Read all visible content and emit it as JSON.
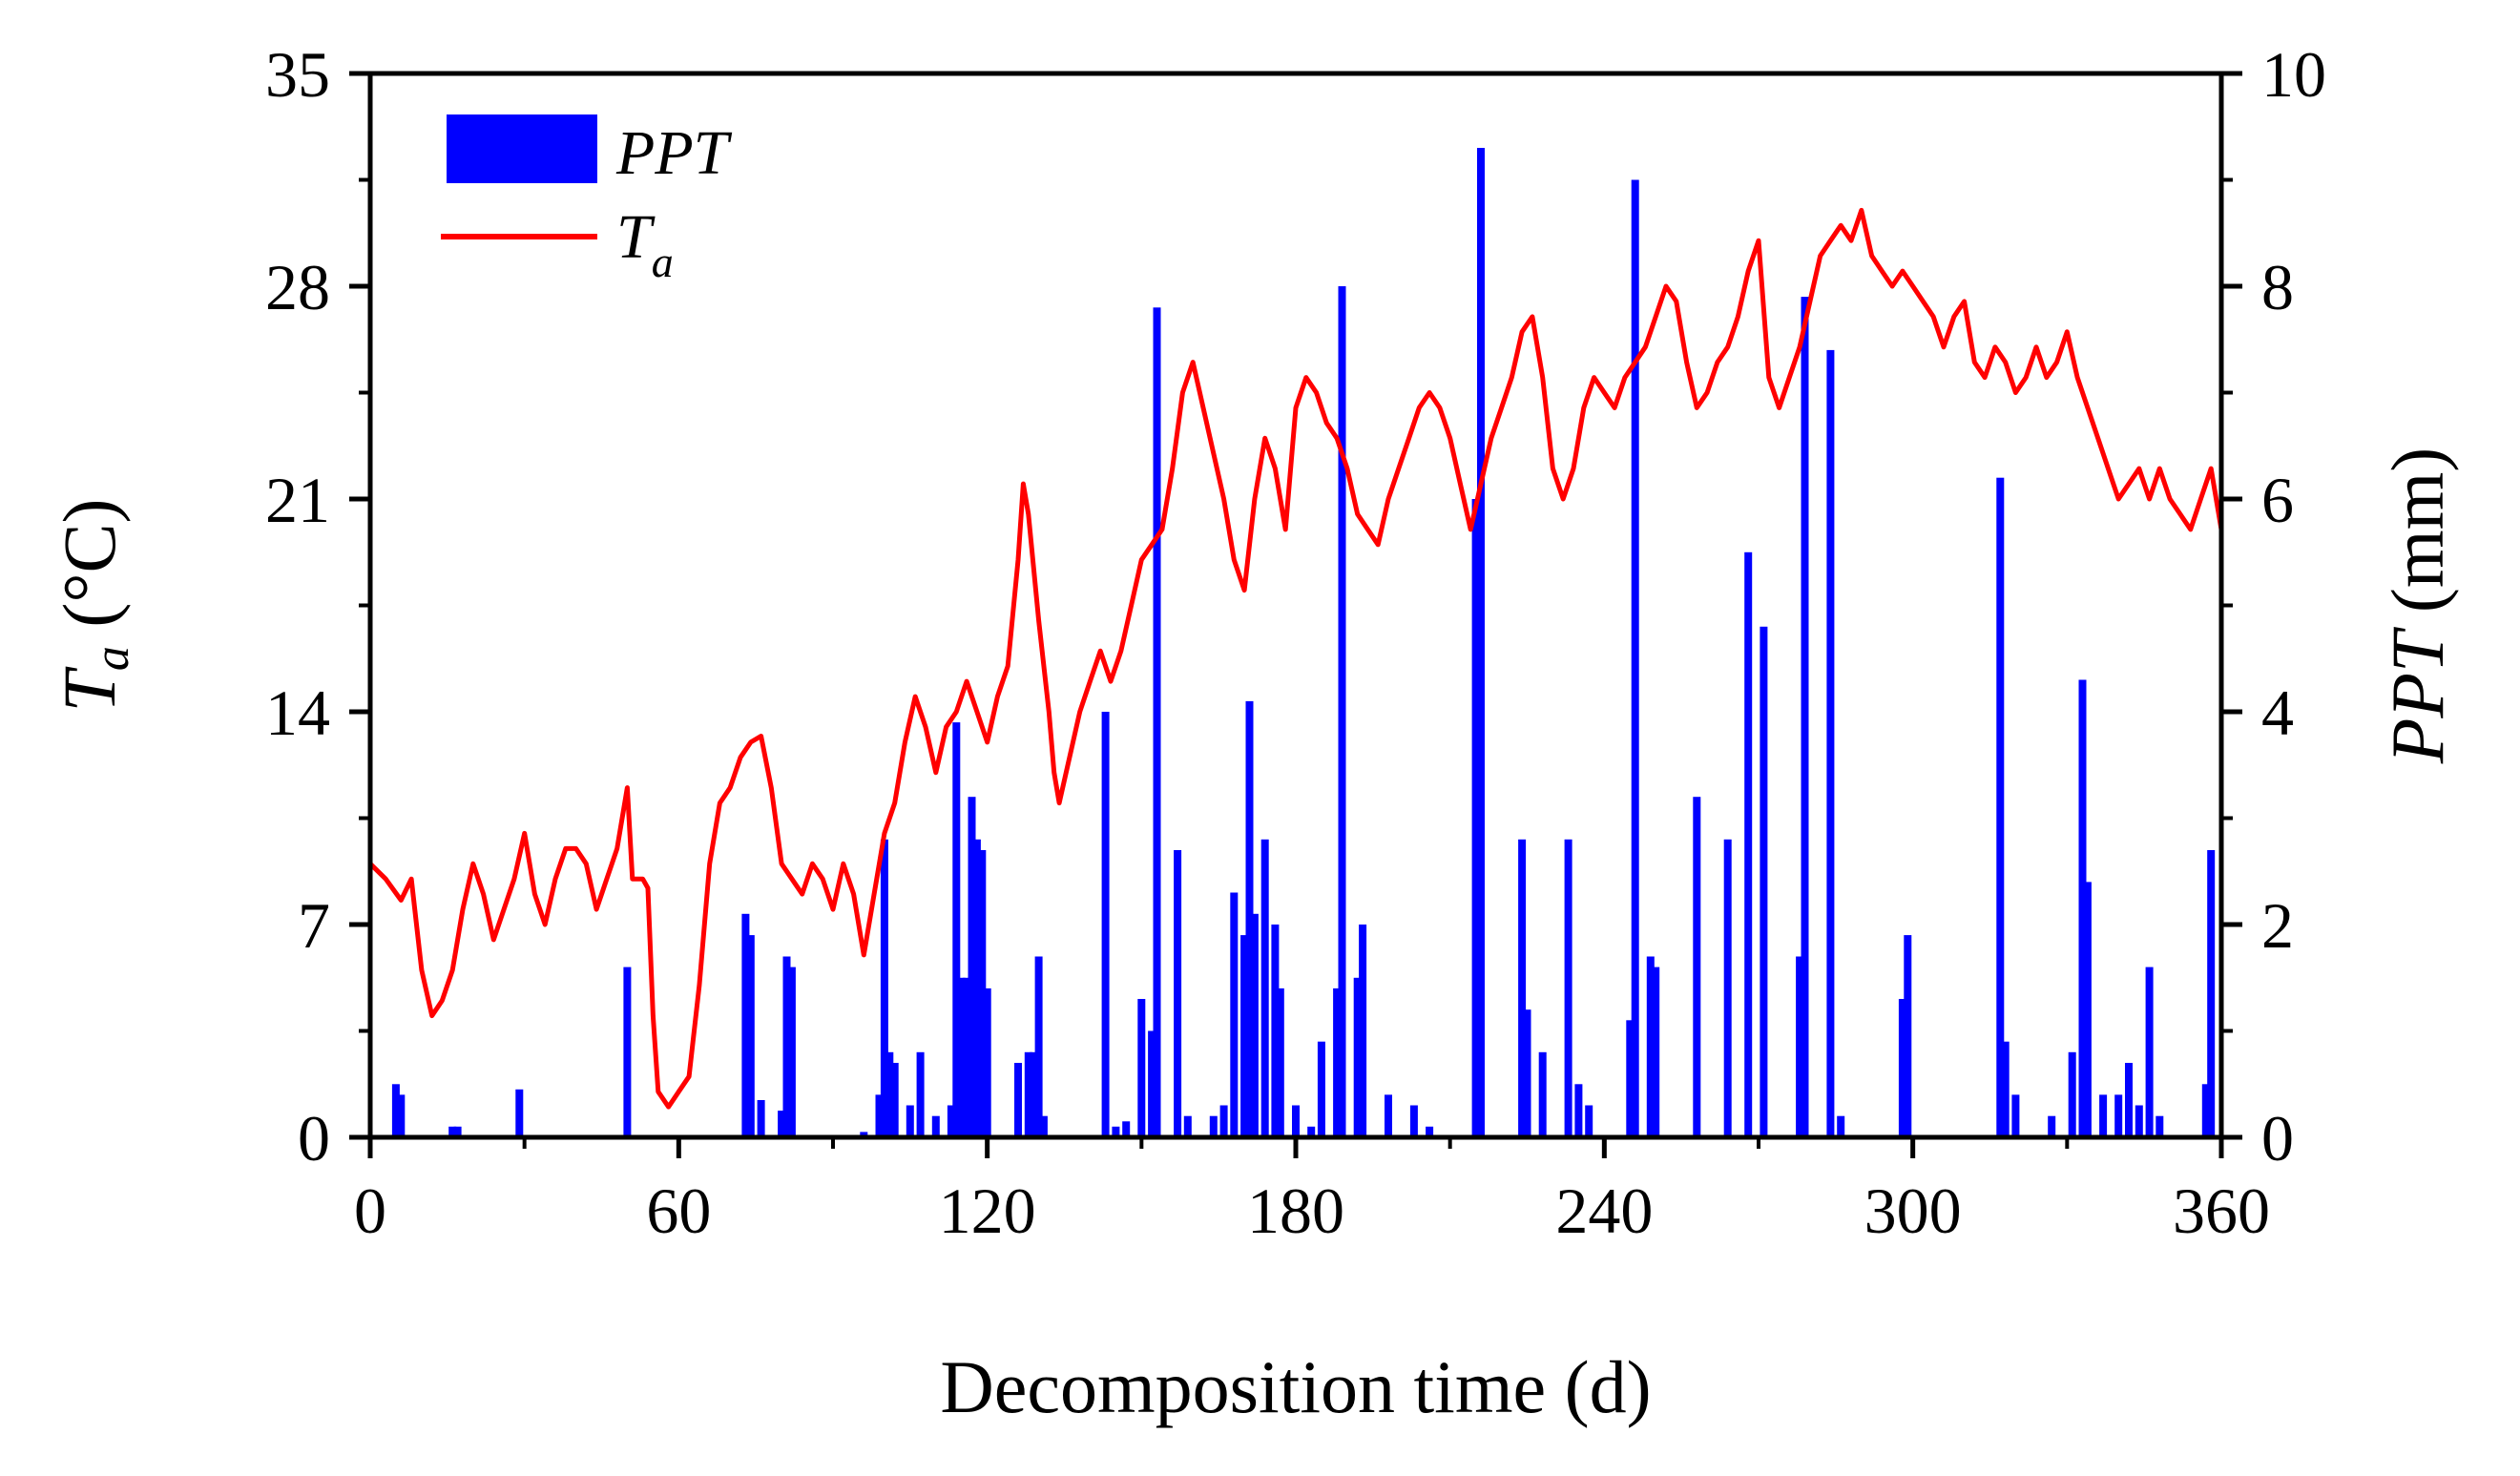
{
  "chart_data": {
    "type": "line+bar",
    "title": "",
    "xlabel": "Decomposition time (d)",
    "ylabel_left": {
      "symbol": "T",
      "subscript": "a",
      "unit": " (°C)"
    },
    "ylabel_right": {
      "symbol": "PPT",
      "unit": " (mm)"
    },
    "xlim": [
      0,
      360
    ],
    "ylim_left": [
      0,
      35
    ],
    "ylim_right": [
      0,
      10
    ],
    "x_ticks": [
      "0",
      "60",
      "120",
      "180",
      "240",
      "300",
      "360"
    ],
    "y_left_ticks": [
      "0",
      "7",
      "14",
      "21",
      "28",
      "35"
    ],
    "y_right_ticks": [
      "0",
      "2",
      "4",
      "6",
      "8",
      "10"
    ],
    "legend": {
      "position": "top-left",
      "items": [
        {
          "label": "PPT",
          "kind": "bar",
          "color": "#0000ff"
        },
        {
          "label": "T",
          "subscript": "a",
          "kind": "line",
          "color": "#ff0000"
        }
      ]
    },
    "series": [
      {
        "name": "Ta",
        "kind": "line",
        "axis": "left",
        "color": "#ff0000",
        "points": [
          [
            0,
            9.0
          ],
          [
            3,
            8.5
          ],
          [
            6,
            7.8
          ],
          [
            8,
            8.5
          ],
          [
            10,
            5.5
          ],
          [
            12,
            4.0
          ],
          [
            14,
            4.5
          ],
          [
            16,
            5.5
          ],
          [
            18,
            7.5
          ],
          [
            20,
            9.0
          ],
          [
            22,
            8.0
          ],
          [
            24,
            6.5
          ],
          [
            26,
            7.5
          ],
          [
            28,
            8.5
          ],
          [
            30,
            10.0
          ],
          [
            32,
            8.0
          ],
          [
            34,
            7.0
          ],
          [
            36,
            8.5
          ],
          [
            38,
            9.5
          ],
          [
            40,
            9.5
          ],
          [
            42,
            9.0
          ],
          [
            44,
            7.5
          ],
          [
            46,
            8.5
          ],
          [
            48,
            9.5
          ],
          [
            50,
            11.5
          ],
          [
            51,
            8.5
          ],
          [
            53,
            8.5
          ],
          [
            54,
            8.2
          ],
          [
            55,
            4.0
          ],
          [
            56,
            1.5
          ],
          [
            58,
            1.0
          ],
          [
            60,
            1.5
          ],
          [
            62,
            2.0
          ],
          [
            64,
            5.0
          ],
          [
            66,
            9.0
          ],
          [
            68,
            11.0
          ],
          [
            70,
            11.5
          ],
          [
            72,
            12.5
          ],
          [
            74,
            13.0
          ],
          [
            76,
            13.2
          ],
          [
            78,
            11.5
          ],
          [
            80,
            9.0
          ],
          [
            82,
            8.5
          ],
          [
            84,
            8.0
          ],
          [
            86,
            9.0
          ],
          [
            88,
            8.5
          ],
          [
            90,
            7.5
          ],
          [
            92,
            9.0
          ],
          [
            94,
            8.0
          ],
          [
            96,
            6.0
          ],
          [
            98,
            8.0
          ],
          [
            100,
            10.0
          ],
          [
            102,
            11.0
          ],
          [
            104,
            13.0
          ],
          [
            106,
            14.5
          ],
          [
            108,
            13.5
          ],
          [
            110,
            12.0
          ],
          [
            112,
            13.5
          ],
          [
            114,
            14.0
          ],
          [
            116,
            15.0
          ],
          [
            118,
            14.0
          ],
          [
            120,
            13.0
          ],
          [
            122,
            14.5
          ],
          [
            124,
            15.5
          ],
          [
            126,
            19.0
          ],
          [
            127,
            21.5
          ],
          [
            128,
            20.5
          ],
          [
            130,
            17.0
          ],
          [
            132,
            14.0
          ],
          [
            133,
            12.0
          ],
          [
            134,
            11.0
          ],
          [
            136,
            12.5
          ],
          [
            138,
            14.0
          ],
          [
            140,
            15.0
          ],
          [
            142,
            16.0
          ],
          [
            144,
            15.0
          ],
          [
            146,
            16.0
          ],
          [
            148,
            17.5
          ],
          [
            150,
            19.0
          ],
          [
            152,
            19.5
          ],
          [
            154,
            20.0
          ],
          [
            156,
            22.0
          ],
          [
            158,
            24.5
          ],
          [
            160,
            25.5
          ],
          [
            162,
            24.0
          ],
          [
            164,
            22.5
          ],
          [
            166,
            21.0
          ],
          [
            168,
            19.0
          ],
          [
            170,
            18.0
          ],
          [
            172,
            21.0
          ],
          [
            174,
            23.0
          ],
          [
            176,
            22.0
          ],
          [
            178,
            20.0
          ],
          [
            180,
            24.0
          ],
          [
            182,
            25.0
          ],
          [
            184,
            24.5
          ],
          [
            186,
            23.5
          ],
          [
            188,
            23.0
          ],
          [
            190,
            22.0
          ],
          [
            192,
            20.5
          ],
          [
            194,
            20.0
          ],
          [
            196,
            19.5
          ],
          [
            198,
            21.0
          ],
          [
            200,
            22.0
          ],
          [
            202,
            23.0
          ],
          [
            204,
            24.0
          ],
          [
            206,
            24.5
          ],
          [
            208,
            24.0
          ],
          [
            210,
            23.0
          ],
          [
            212,
            21.5
          ],
          [
            214,
            20.0
          ],
          [
            216,
            21.5
          ],
          [
            218,
            23.0
          ],
          [
            220,
            24.0
          ],
          [
            222,
            25.0
          ],
          [
            224,
            26.5
          ],
          [
            226,
            27.0
          ],
          [
            228,
            25.0
          ],
          [
            230,
            22.0
          ],
          [
            232,
            21.0
          ],
          [
            234,
            22.0
          ],
          [
            236,
            24.0
          ],
          [
            238,
            25.0
          ],
          [
            240,
            24.5
          ],
          [
            242,
            24.0
          ],
          [
            244,
            25.0
          ],
          [
            246,
            25.5
          ],
          [
            248,
            26.0
          ],
          [
            250,
            27.0
          ],
          [
            252,
            28.0
          ],
          [
            254,
            27.5
          ],
          [
            256,
            25.5
          ],
          [
            258,
            24.0
          ],
          [
            260,
            24.5
          ],
          [
            262,
            25.5
          ],
          [
            264,
            26.0
          ],
          [
            266,
            27.0
          ],
          [
            268,
            28.5
          ],
          [
            270,
            29.5
          ],
          [
            272,
            25.0
          ],
          [
            274,
            24.0
          ],
          [
            276,
            25.0
          ],
          [
            278,
            26.0
          ],
          [
            280,
            27.5
          ],
          [
            282,
            29.0
          ],
          [
            284,
            29.5
          ],
          [
            286,
            30.0
          ],
          [
            288,
            29.5
          ],
          [
            290,
            30.5
          ],
          [
            292,
            29.0
          ],
          [
            294,
            28.5
          ],
          [
            296,
            28.0
          ],
          [
            298,
            28.5
          ],
          [
            300,
            28.0
          ],
          [
            302,
            27.5
          ],
          [
            304,
            27.0
          ],
          [
            306,
            26.0
          ],
          [
            308,
            27.0
          ],
          [
            310,
            27.5
          ],
          [
            312,
            25.5
          ],
          [
            314,
            25.0
          ],
          [
            316,
            26.0
          ],
          [
            318,
            25.5
          ],
          [
            320,
            24.5
          ],
          [
            322,
            25.0
          ],
          [
            324,
            26.0
          ],
          [
            326,
            25.0
          ],
          [
            328,
            25.5
          ],
          [
            330,
            26.5
          ],
          [
            332,
            25.0
          ],
          [
            334,
            24.0
          ],
          [
            336,
            23.0
          ],
          [
            338,
            22.0
          ],
          [
            340,
            21.0
          ],
          [
            342,
            21.5
          ],
          [
            344,
            22.0
          ],
          [
            346,
            21.0
          ],
          [
            348,
            22.0
          ],
          [
            350,
            21.0
          ],
          [
            352,
            20.5
          ],
          [
            354,
            20.0
          ],
          [
            356,
            21.0
          ],
          [
            358,
            22.0
          ],
          [
            360,
            20.0
          ]
        ]
      },
      {
        "name": "PPT",
        "kind": "bar",
        "axis": "right",
        "color": "#0000ff",
        "points": [
          [
            5,
            0.5
          ],
          [
            6,
            0.4
          ],
          [
            16,
            0.1
          ],
          [
            17,
            0.1
          ],
          [
            29,
            0.45
          ],
          [
            50,
            1.6
          ],
          [
            73,
            2.1
          ],
          [
            74,
            1.9
          ],
          [
            76,
            0.35
          ],
          [
            80,
            0.25
          ],
          [
            81,
            1.7
          ],
          [
            82,
            1.6
          ],
          [
            96,
            0.05
          ],
          [
            99,
            0.4
          ],
          [
            100,
            2.8
          ],
          [
            101,
            0.8
          ],
          [
            102,
            0.7
          ],
          [
            105,
            0.3
          ],
          [
            107,
            0.8
          ],
          [
            110,
            0.2
          ],
          [
            113,
            0.3
          ],
          [
            114,
            3.9
          ],
          [
            115,
            1.5
          ],
          [
            116,
            1.5
          ],
          [
            117,
            3.2
          ],
          [
            118,
            2.8
          ],
          [
            119,
            2.7
          ],
          [
            120,
            1.4
          ],
          [
            126,
            0.7
          ],
          [
            128,
            0.8
          ],
          [
            129,
            0.8
          ],
          [
            130,
            1.7
          ],
          [
            131,
            0.2
          ],
          [
            143,
            4.0
          ],
          [
            145,
            0.1
          ],
          [
            147,
            0.15
          ],
          [
            150,
            1.3
          ],
          [
            152,
            1.0
          ],
          [
            153,
            7.8
          ],
          [
            157,
            2.7
          ],
          [
            159,
            0.2
          ],
          [
            164,
            0.2
          ],
          [
            166,
            0.3
          ],
          [
            168,
            2.3
          ],
          [
            170,
            1.9
          ],
          [
            171,
            4.1
          ],
          [
            172,
            2.1
          ],
          [
            174,
            2.8
          ],
          [
            176,
            2.0
          ],
          [
            177,
            1.4
          ],
          [
            180,
            0.3
          ],
          [
            183,
            0.1
          ],
          [
            185,
            0.9
          ],
          [
            188,
            1.4
          ],
          [
            189,
            8.0
          ],
          [
            192,
            1.5
          ],
          [
            193,
            2.0
          ],
          [
            198,
            0.4
          ],
          [
            203,
            0.3
          ],
          [
            206,
            0.1
          ],
          [
            215,
            6.0
          ],
          [
            216,
            9.3
          ],
          [
            224,
            2.8
          ],
          [
            225,
            1.2
          ],
          [
            228,
            0.8
          ],
          [
            233,
            2.8
          ],
          [
            235,
            0.5
          ],
          [
            237,
            0.3
          ],
          [
            245,
            1.1
          ],
          [
            246,
            9.0
          ],
          [
            249,
            1.7
          ],
          [
            250,
            1.6
          ],
          [
            258,
            3.2
          ],
          [
            264,
            2.8
          ],
          [
            268,
            5.5
          ],
          [
            271,
            4.8
          ],
          [
            278,
            1.7
          ],
          [
            279,
            7.9
          ],
          [
            284,
            7.4
          ],
          [
            286,
            0.2
          ],
          [
            298,
            1.3
          ],
          [
            299,
            1.9
          ],
          [
            317,
            6.2
          ],
          [
            318,
            0.9
          ],
          [
            320,
            0.4
          ],
          [
            327,
            0.2
          ],
          [
            331,
            0.8
          ],
          [
            333,
            4.3
          ],
          [
            334,
            2.4
          ],
          [
            337,
            0.4
          ],
          [
            340,
            0.4
          ],
          [
            342,
            0.7
          ],
          [
            344,
            0.3
          ],
          [
            346,
            1.6
          ],
          [
            348,
            0.2
          ],
          [
            357,
            0.5
          ],
          [
            358,
            2.7
          ]
        ]
      }
    ]
  }
}
